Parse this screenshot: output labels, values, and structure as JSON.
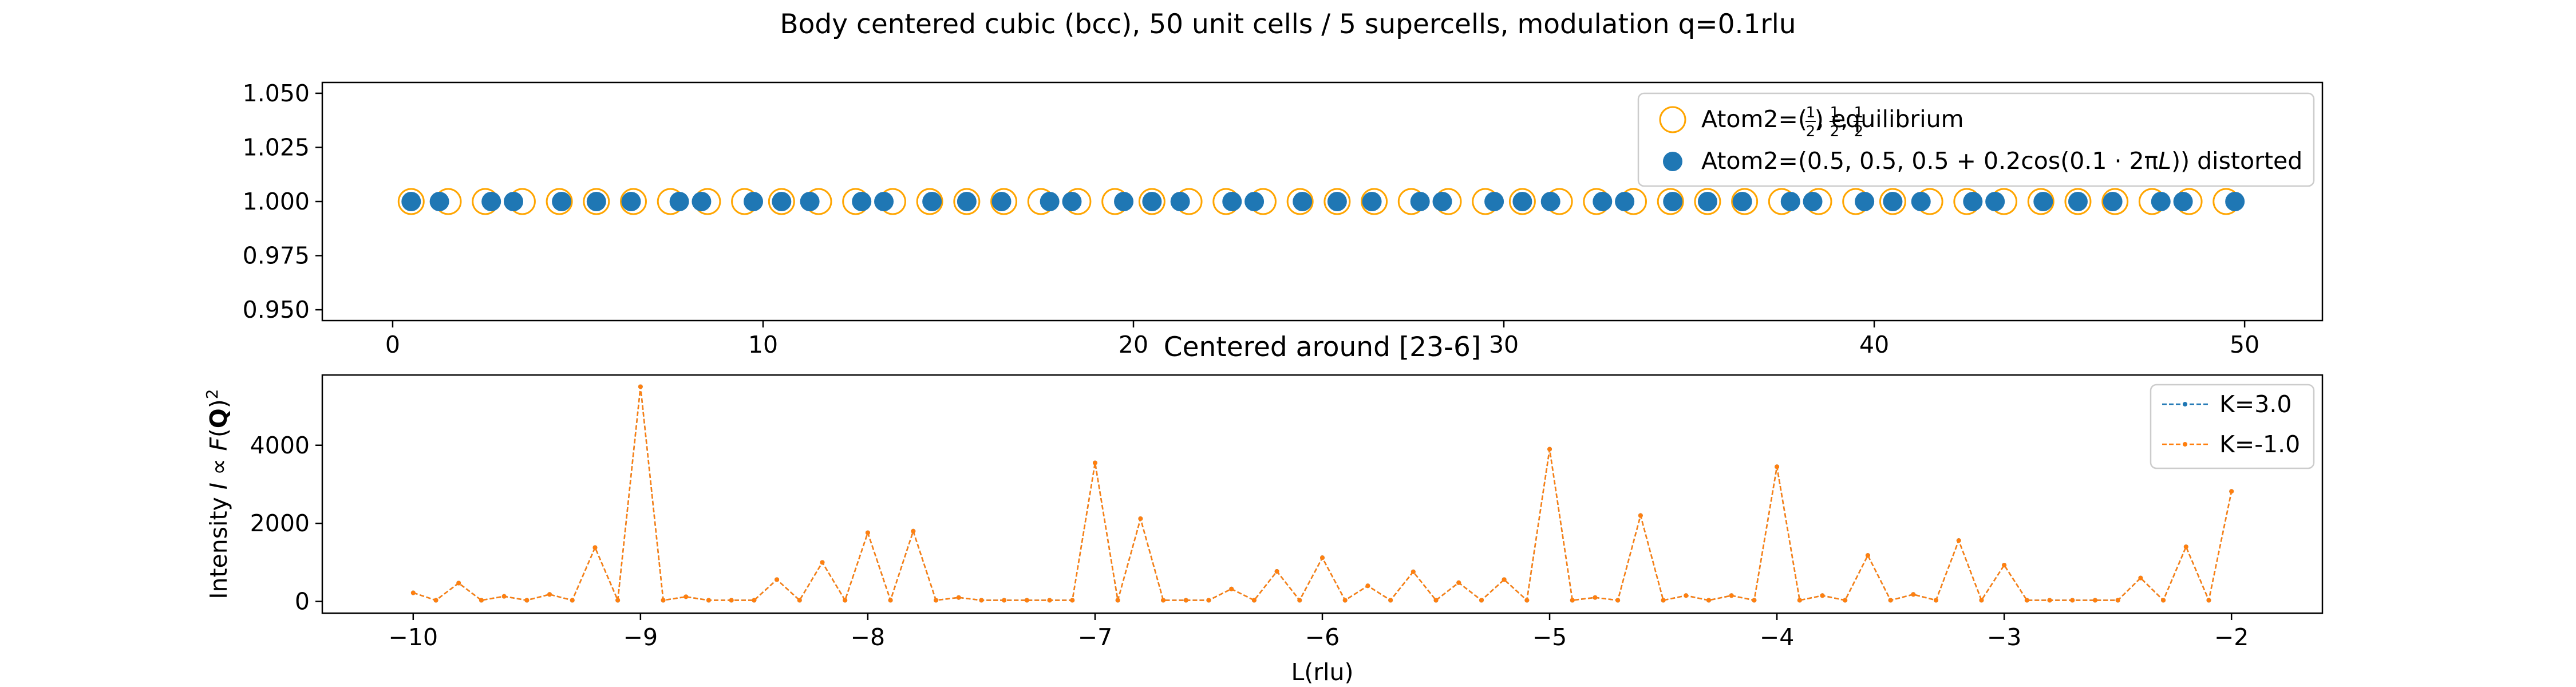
{
  "figure": {
    "suptitle": "Body centered cubic (bcc), 50 unit cells / 5 supercells, modulation q=0.1rlu",
    "colors": {
      "equilibrium": "#ffa500",
      "distorted": "#1f77b4",
      "k3": "#1f77b4",
      "km1": "#ff7f0e"
    }
  },
  "chart_data": [
    {
      "type": "scatter",
      "title": "",
      "xlabel": "",
      "ylabel": "",
      "xlim": [
        -1.9,
        52.1
      ],
      "ylim": [
        0.945,
        1.055
      ],
      "xticks": [
        0,
        10,
        20,
        30,
        40,
        50
      ],
      "yticks": [
        0.95,
        0.975,
        1.0,
        1.025,
        1.05
      ],
      "ytick_labels": [
        "0.950",
        "0.975",
        "1.000",
        "1.025",
        "1.050"
      ],
      "legend_position": "upper right",
      "series": [
        {
          "name": "Atom2=(½, ½, ½) equilibrium",
          "label_parts": {
            "pre": "Atom2=(",
            "post": ") equilibrium"
          },
          "marker": "open-circle",
          "x": [
            0.5,
            1.5,
            2.5,
            3.5,
            4.5,
            5.5,
            6.5,
            7.5,
            8.5,
            9.5,
            10.5,
            11.5,
            12.5,
            13.5,
            14.5,
            15.5,
            16.5,
            17.5,
            18.5,
            19.5,
            20.5,
            21.5,
            22.5,
            23.5,
            24.5,
            25.5,
            26.5,
            27.5,
            28.5,
            29.5,
            30.5,
            31.5,
            32.5,
            33.5,
            34.5,
            35.5,
            36.5,
            37.5,
            38.5,
            39.5,
            40.5,
            41.5,
            42.5,
            43.5,
            44.5,
            45.5,
            46.5,
            47.5,
            48.5,
            49.5
          ],
          "y": 1.0
        },
        {
          "name": "Atom2=(0.5, 0.5, 0.5 + 0.2cos(0.1 · 2πL)) distorted",
          "label_parts": {
            "pre": "Atom2=(0.5, 0.5, 0.5 + 0.2cos(0.1 · 2π",
            "var": "L",
            "post": ")) distorted"
          },
          "marker": "filled-circle",
          "x": [
            0.5,
            1.262,
            2.662,
            3.262,
            4.562,
            5.5,
            6.438,
            7.738,
            8.338,
            9.738,
            10.5,
            11.262,
            12.662,
            13.262,
            14.562,
            15.5,
            16.438,
            17.738,
            18.338,
            19.738,
            20.5,
            21.262,
            22.662,
            23.262,
            24.562,
            25.5,
            26.438,
            27.738,
            28.338,
            29.738,
            30.5,
            31.262,
            32.662,
            33.262,
            34.562,
            35.5,
            36.438,
            37.738,
            38.338,
            39.738,
            40.5,
            41.262,
            42.662,
            43.262,
            44.562,
            45.5,
            46.438,
            47.738,
            48.338,
            49.738
          ],
          "y": 1.0
        }
      ]
    },
    {
      "type": "line",
      "title": "Centered around [23-6]",
      "xlabel": "L(rlu)",
      "ylabel": "Intensity I ∝ F(Q)²",
      "ylabel_parts": {
        "pre": "Intensity ",
        "I": "I",
        "prop": " ∝ ",
        "F": "F",
        "Q": "Q"
      },
      "xlim": [
        -10.4,
        -1.6
      ],
      "ylim": [
        -300,
        5800
      ],
      "xticks": [
        -10,
        -9,
        -8,
        -7,
        -6,
        -5,
        -4,
        -3,
        -2
      ],
      "xtick_labels": [
        "−10",
        "−9",
        "−8",
        "−7",
        "−6",
        "−5",
        "−4",
        "−3",
        "−2"
      ],
      "yticks": [
        0,
        2000,
        4000
      ],
      "legend_position": "upper right",
      "x_start": -10,
      "x_step": 0.1,
      "series": [
        {
          "name": "K=3.0",
          "values": [
            220,
            30,
            470,
            30,
            130,
            30,
            180,
            30,
            1380,
            30,
            5500,
            30,
            120,
            30,
            30,
            30,
            560,
            30,
            1000,
            30,
            1760,
            30,
            1800,
            30,
            100,
            30,
            30,
            30,
            30,
            30,
            3550,
            30,
            2120,
            30,
            30,
            30,
            320,
            30,
            770,
            30,
            1120,
            30,
            400,
            30,
            760,
            30,
            480,
            30,
            560,
            30,
            3900,
            30,
            100,
            30,
            2200,
            30,
            150,
            30,
            150,
            30,
            3450,
            30,
            150,
            30,
            1180,
            30,
            180,
            30,
            1560,
            30,
            930,
            30,
            30,
            30,
            30,
            30,
            600,
            30,
            1400,
            30,
            2820
          ]
        },
        {
          "name": "K=-1.0",
          "values": [
            220,
            30,
            470,
            30,
            130,
            30,
            180,
            30,
            1380,
            30,
            5500,
            30,
            120,
            30,
            30,
            30,
            560,
            30,
            1000,
            30,
            1760,
            30,
            1800,
            30,
            100,
            30,
            30,
            30,
            30,
            30,
            3550,
            30,
            2120,
            30,
            30,
            30,
            320,
            30,
            770,
            30,
            1120,
            30,
            400,
            30,
            760,
            30,
            480,
            30,
            560,
            30,
            3900,
            30,
            100,
            30,
            2200,
            30,
            150,
            30,
            150,
            30,
            3450,
            30,
            150,
            30,
            1180,
            30,
            180,
            30,
            1560,
            30,
            930,
            30,
            30,
            30,
            30,
            30,
            600,
            30,
            1400,
            30,
            2820
          ]
        }
      ]
    }
  ]
}
